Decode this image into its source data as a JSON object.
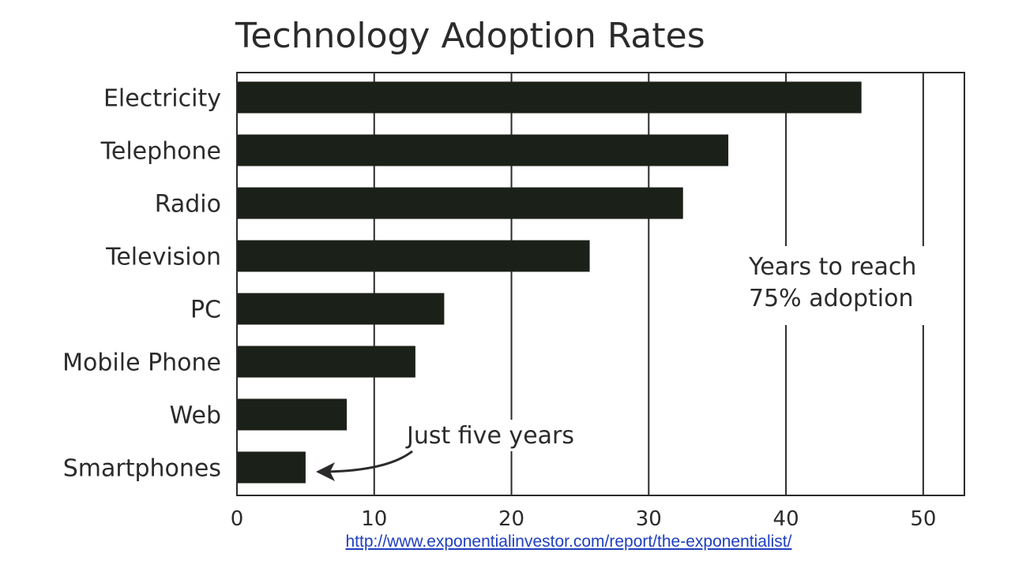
{
  "chart_data": {
    "type": "bar",
    "orientation": "horizontal",
    "title": "Technology Adoption Rates",
    "categories": [
      "Electricity",
      "Telephone",
      "Radio",
      "Television",
      "PC",
      "Mobile Phone",
      "Web",
      "Smartphones"
    ],
    "values": [
      45.5,
      35.8,
      32.5,
      25.7,
      15.1,
      13,
      8,
      5
    ],
    "xlabel": "",
    "ylabel": "",
    "xlim": [
      0,
      53
    ],
    "xticks": [
      0,
      10,
      20,
      30,
      40,
      50
    ],
    "grid": true,
    "colors": {
      "bar": "#1b2119",
      "grid": "#2b2b2b",
      "text": "#2b2b2b"
    },
    "annotations": {
      "legend_note_line1": "Years to reach",
      "legend_note_line2": "75% adoption",
      "callout": "Just five years"
    }
  },
  "source_link": "http://www.exponentialinvestor.com/report/the-exponentialist/",
  "link_color": "#1f3fbf"
}
